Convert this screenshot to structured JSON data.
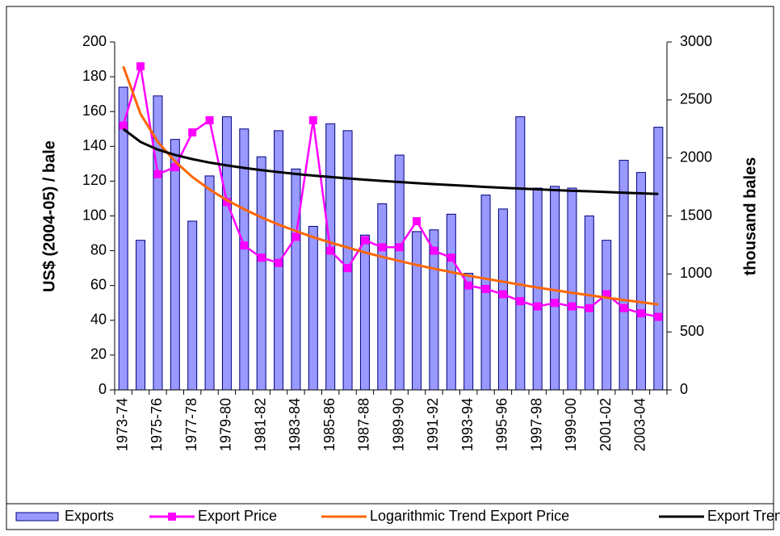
{
  "chart_data": {
    "type": "bar",
    "categories": [
      "1973-74",
      null,
      "1975-76",
      null,
      "1977-78",
      null,
      "1979-80",
      null,
      "1981-82",
      null,
      "1983-84",
      null,
      "1985-86",
      null,
      "1987-88",
      null,
      "1989-90",
      null,
      "1991-92",
      null,
      "1993-94",
      null,
      "1995-96",
      null,
      "1997-98",
      null,
      "1999-00",
      null,
      "2001-02",
      null,
      "2003-04",
      null
    ],
    "ylabel": "US$ (2004-05) / bale",
    "y2label": "thousand bales",
    "ylim": [
      0,
      200
    ],
    "yticks": [
      0,
      20,
      40,
      60,
      80,
      100,
      120,
      140,
      160,
      180,
      200
    ],
    "y2lim": [
      0,
      3000
    ],
    "y2ticks": [
      0,
      500,
      1000,
      1500,
      2000,
      2500,
      3000
    ],
    "series": [
      {
        "name": "Exports",
        "type": "bar",
        "axis": "y2",
        "color": "#9999ff",
        "values": [
          2610,
          1290,
          2535,
          2160,
          1455,
          1845,
          2355,
          2250,
          2010,
          2235,
          1905,
          1410,
          2295,
          2235,
          1335,
          1605,
          2025,
          1365,
          1380,
          1515,
          1005,
          1680,
          1560,
          2355,
          1740,
          1755,
          1740,
          1500,
          1290,
          1980,
          1875,
          2265
        ]
      },
      {
        "name": "Export Price",
        "type": "line",
        "marker": "square",
        "color": "#ff00ff",
        "values": [
          152,
          186,
          124,
          128,
          148,
          155,
          108,
          83,
          76,
          73,
          88,
          155,
          80,
          70,
          86,
          82,
          82,
          97,
          80,
          76,
          60,
          58,
          55,
          51,
          48,
          50,
          48,
          47,
          55,
          47,
          44,
          42
        ]
      },
      {
        "name": "Logarithmic Trend Export Price",
        "type": "line",
        "color": "#ff6600",
        "values": [
          186,
          158.6,
          142.6,
          131.3,
          122.4,
          115.2,
          109.1,
          103.9,
          99.2,
          95.0,
          91.3,
          87.8,
          84.7,
          81.8,
          79.0,
          76.5,
          74.1,
          71.8,
          69.7,
          67.7,
          65.7,
          63.9,
          62.2,
          60.5,
          58.8,
          57.3,
          55.8,
          54.4,
          53.0,
          51.7,
          50.4,
          49.1
        ]
      },
      {
        "name": "Export Trend",
        "type": "line",
        "axis": "y2",
        "color": "#000000",
        "values": [
          2250,
          2138,
          2072,
          2026,
          1990,
          1960,
          1936,
          1914,
          1895,
          1878,
          1862,
          1848,
          1836,
          1824,
          1812,
          1802,
          1792,
          1783,
          1774,
          1766,
          1758,
          1750,
          1743,
          1736,
          1730,
          1723,
          1717,
          1712,
          1706,
          1700,
          1695,
          1690
        ]
      }
    ]
  }
}
